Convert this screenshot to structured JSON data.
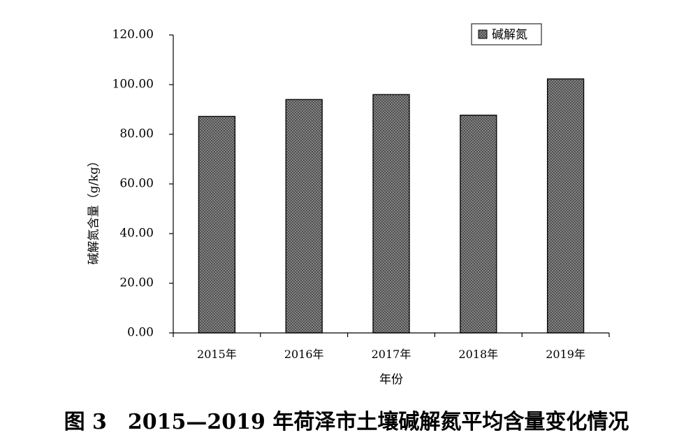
{
  "caption": "图 3　2015—2019 年荷泽市土壤碱解氮平均含量变化情况",
  "chart_data": {
    "type": "bar",
    "categories": [
      "2015年",
      "2016年",
      "2017年",
      "2018年",
      "2019年"
    ],
    "series": [
      {
        "name": "碱解氮",
        "values": [
          87.2,
          94.0,
          96.0,
          87.7,
          102.3
        ]
      }
    ],
    "xlabel": "年份",
    "ylabel": "碱解氮含量（g/kg）",
    "ylim": [
      0,
      120
    ],
    "yticks": [
      "0.00",
      "20.00",
      "40.00",
      "60.00",
      "80.00",
      "100.00",
      "120.00"
    ],
    "legend_position": "top-right",
    "grid": false,
    "bar_fill": "crosshatch gray"
  }
}
